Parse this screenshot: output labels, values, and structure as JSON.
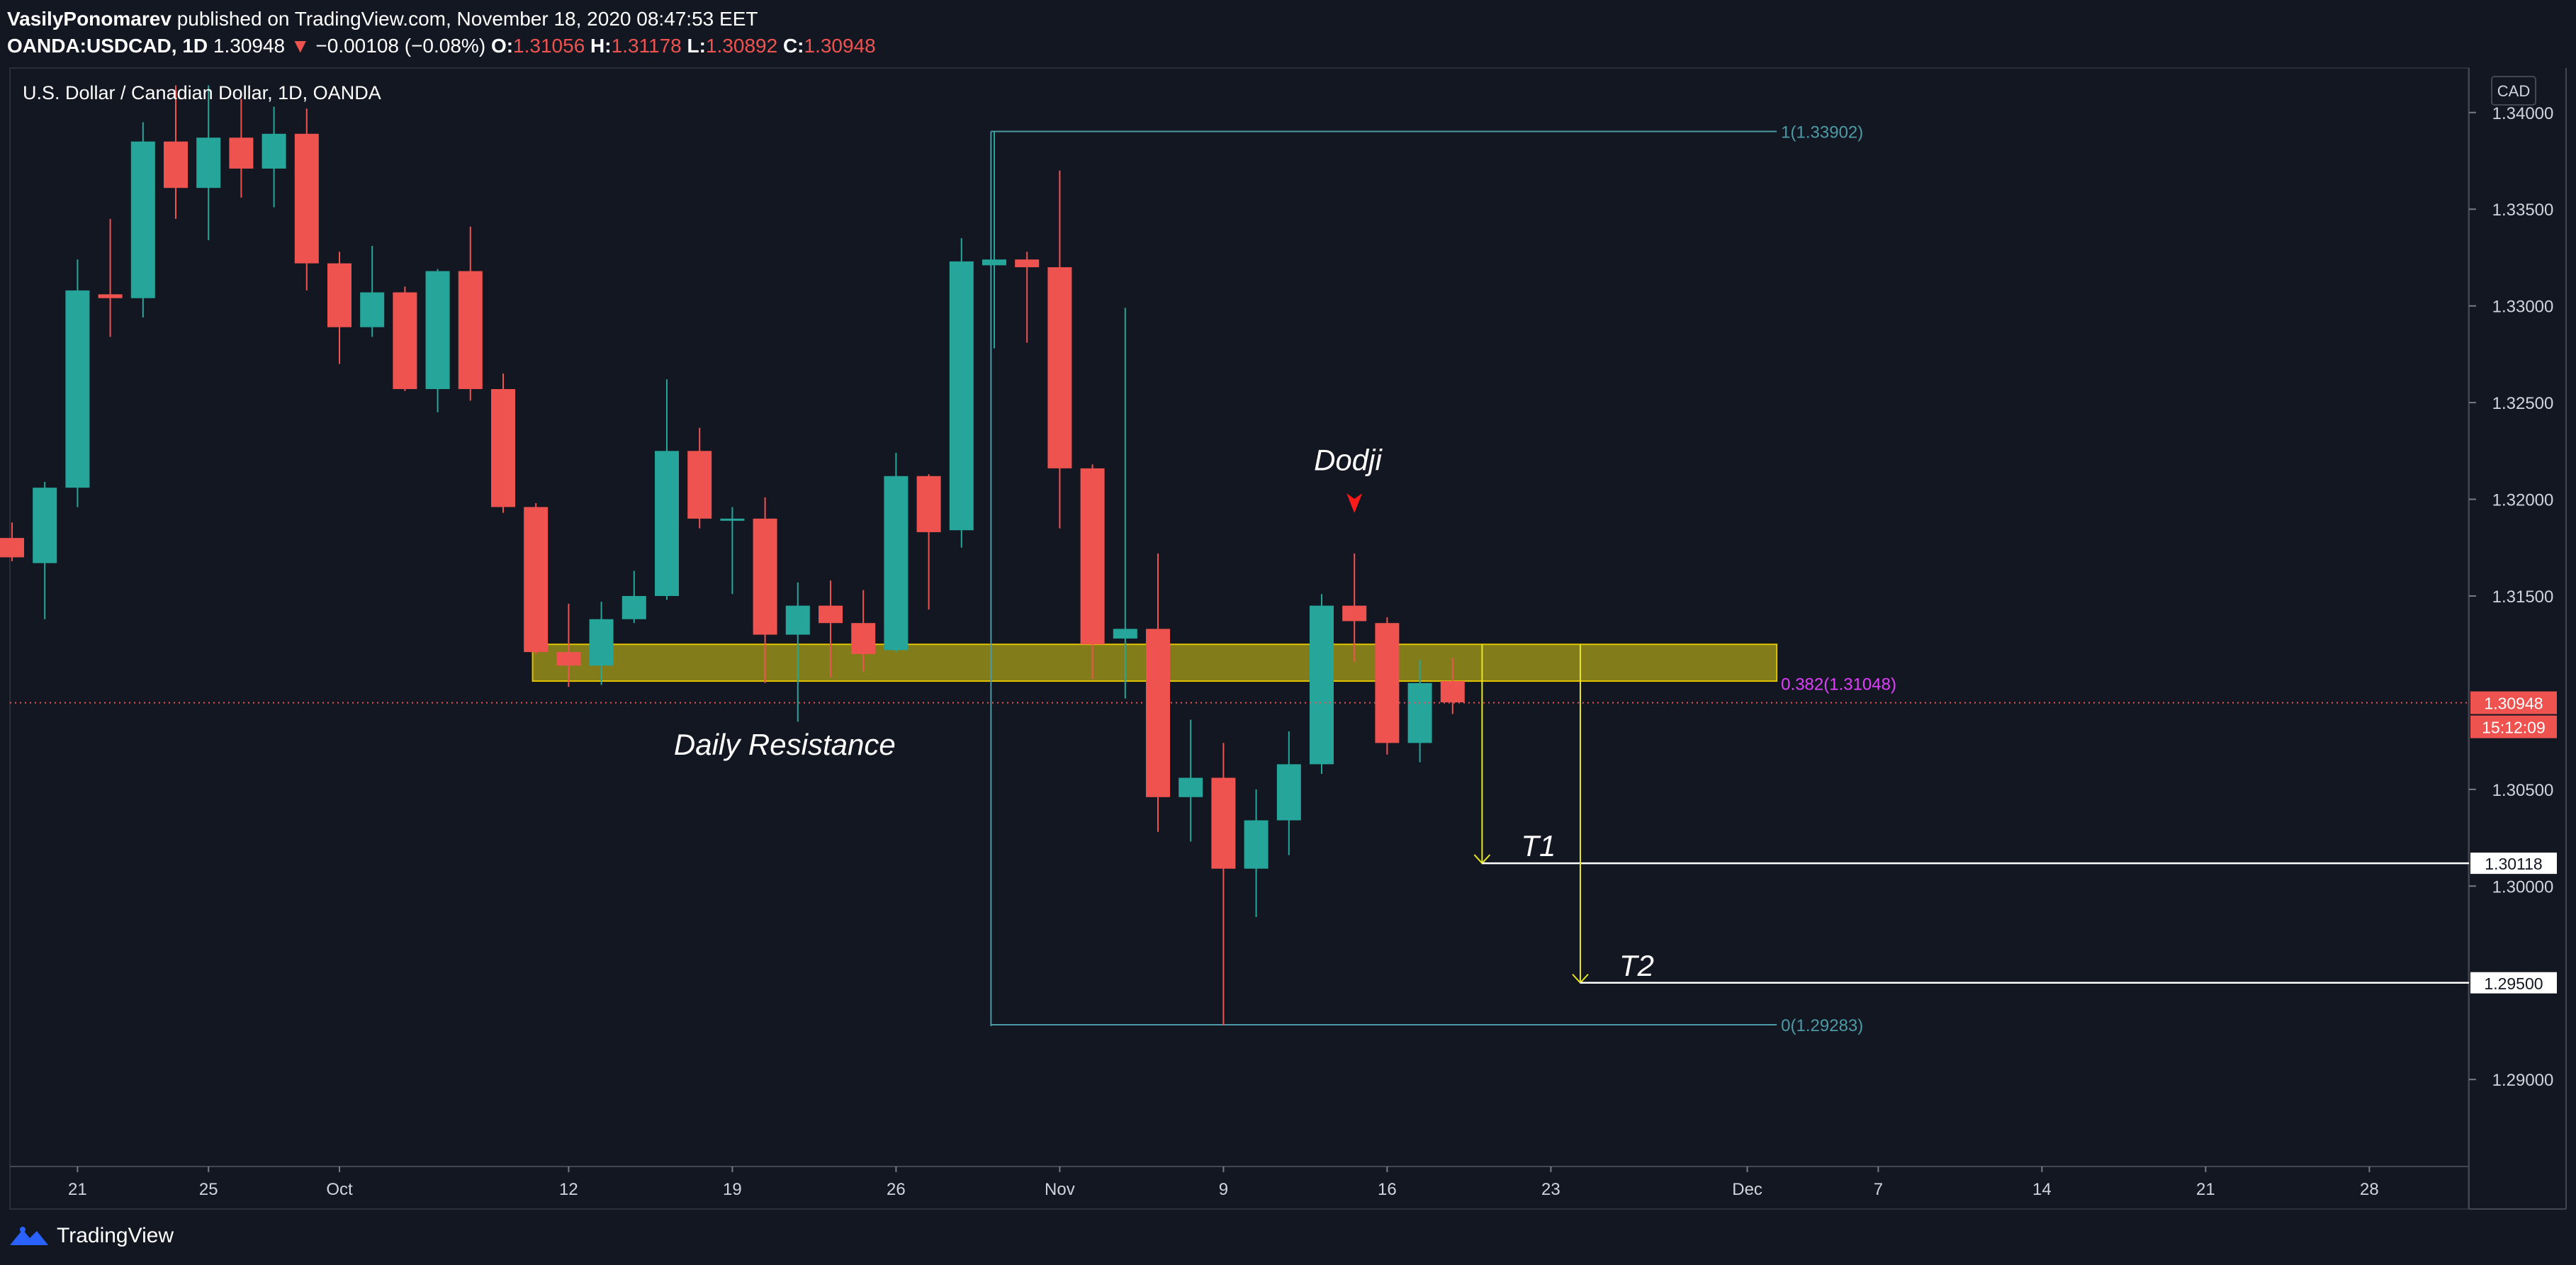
{
  "header": {
    "author": "VasilyPonomarev",
    "published_text": "published on TradingView.com, November 18, 2020 08:47:53 EET",
    "symbol": "OANDA:USDCAD, 1D",
    "last": "1.30948",
    "change": "−0.00108 (−0.08%)",
    "o_label": "O:",
    "o_val": "1.31056",
    "h_label": "H:",
    "h_val": "1.31178",
    "l_label": "L:",
    "l_val": "1.30892",
    "c_label": "C:",
    "c_val": "1.30948"
  },
  "brand": {
    "name": "TradingView"
  },
  "chart_data": {
    "type": "candlestick",
    "title": "U.S. Dollar / Canadian Dollar, 1D, OANDA",
    "currency_label": "CAD",
    "ylim": [
      1.2855,
      1.3423
    ],
    "y_ticks": [
      "1.34000",
      "1.33500",
      "1.33000",
      "1.32500",
      "1.32000",
      "1.31500",
      "1.30500",
      "1.30000",
      "1.29000"
    ],
    "x_range": [
      0,
      75
    ],
    "x_ticks": [
      {
        "i": 2,
        "label": "21"
      },
      {
        "i": 6,
        "label": "25"
      },
      {
        "i": 10,
        "label": "Oct"
      },
      {
        "i": 17,
        "label": "12"
      },
      {
        "i": 22,
        "label": "19"
      },
      {
        "i": 27,
        "label": "26"
      },
      {
        "i": 32,
        "label": "Nov"
      },
      {
        "i": 37,
        "label": "9"
      },
      {
        "i": 42,
        "label": "16"
      },
      {
        "i": 47,
        "label": "23"
      },
      {
        "i": 53,
        "label": "Dec"
      },
      {
        "i": 57,
        "label": "7"
      },
      {
        "i": 62,
        "label": "14"
      },
      {
        "i": 67,
        "label": "21"
      },
      {
        "i": 72,
        "label": "28"
      }
    ],
    "candles": [
      {
        "i": 0,
        "o": 1.318,
        "h": 1.3188,
        "l": 1.3168,
        "c": 1.317
      },
      {
        "i": 1,
        "o": 1.3167,
        "h": 1.3209,
        "l": 1.3138,
        "c": 1.3206
      },
      {
        "i": 2,
        "o": 1.3206,
        "h": 1.3324,
        "l": 1.3196,
        "c": 1.3308
      },
      {
        "i": 3,
        "o": 1.3306,
        "h": 1.3345,
        "l": 1.3284,
        "c": 1.3304
      },
      {
        "i": 4,
        "o": 1.3304,
        "h": 1.3395,
        "l": 1.3294,
        "c": 1.3385
      },
      {
        "i": 5,
        "o": 1.3385,
        "h": 1.3414,
        "l": 1.3345,
        "c": 1.3361
      },
      {
        "i": 6,
        "o": 1.3361,
        "h": 1.3414,
        "l": 1.3334,
        "c": 1.3387
      },
      {
        "i": 7,
        "o": 1.3387,
        "h": 1.3407,
        "l": 1.3356,
        "c": 1.3371
      },
      {
        "i": 8,
        "o": 1.3371,
        "h": 1.3403,
        "l": 1.3351,
        "c": 1.3389
      },
      {
        "i": 9,
        "o": 1.3389,
        "h": 1.3402,
        "l": 1.3308,
        "c": 1.3322
      },
      {
        "i": 10,
        "o": 1.3322,
        "h": 1.3328,
        "l": 1.327,
        "c": 1.3289
      },
      {
        "i": 11,
        "o": 1.3289,
        "h": 1.3331,
        "l": 1.3284,
        "c": 1.3307
      },
      {
        "i": 12,
        "o": 1.3307,
        "h": 1.331,
        "l": 1.3256,
        "c": 1.3257
      },
      {
        "i": 13,
        "o": 1.3257,
        "h": 1.3319,
        "l": 1.3245,
        "c": 1.3318
      },
      {
        "i": 14,
        "o": 1.3318,
        "h": 1.3341,
        "l": 1.3251,
        "c": 1.3257
      },
      {
        "i": 15,
        "o": 1.3257,
        "h": 1.3265,
        "l": 1.3193,
        "c": 1.3196
      },
      {
        "i": 16,
        "o": 1.3196,
        "h": 1.3198,
        "l": 1.312,
        "c": 1.3121
      },
      {
        "i": 17,
        "o": 1.3121,
        "h": 1.3146,
        "l": 1.3103,
        "c": 1.3114
      },
      {
        "i": 18,
        "o": 1.3114,
        "h": 1.3147,
        "l": 1.3104,
        "c": 1.3138
      },
      {
        "i": 19,
        "o": 1.3138,
        "h": 1.3163,
        "l": 1.3136,
        "c": 1.315
      },
      {
        "i": 20,
        "o": 1.315,
        "h": 1.3262,
        "l": 1.3148,
        "c": 1.3225
      },
      {
        "i": 21,
        "o": 1.3225,
        "h": 1.3237,
        "l": 1.3185,
        "c": 1.319
      },
      {
        "i": 22,
        "o": 1.3189,
        "h": 1.3196,
        "l": 1.3151,
        "c": 1.319
      },
      {
        "i": 23,
        "o": 1.319,
        "h": 1.3201,
        "l": 1.3105,
        "c": 1.313
      },
      {
        "i": 24,
        "o": 1.313,
        "h": 1.3157,
        "l": 1.3085,
        "c": 1.3145
      },
      {
        "i": 25,
        "o": 1.3145,
        "h": 1.3158,
        "l": 1.3108,
        "c": 1.3136
      },
      {
        "i": 26,
        "o": 1.3136,
        "h": 1.3153,
        "l": 1.3111,
        "c": 1.312
      },
      {
        "i": 27,
        "o": 1.3122,
        "h": 1.3224,
        "l": 1.3121,
        "c": 1.3212
      },
      {
        "i": 28,
        "o": 1.3212,
        "h": 1.3213,
        "l": 1.3143,
        "c": 1.3183
      },
      {
        "i": 29,
        "o": 1.3184,
        "h": 1.3335,
        "l": 1.3175,
        "c": 1.3323
      },
      {
        "i": 30,
        "o": 1.3321,
        "h": 1.339,
        "l": 1.3278,
        "c": 1.3324
      },
      {
        "i": 31,
        "o": 1.3324,
        "h": 1.3328,
        "l": 1.3281,
        "c": 1.332
      },
      {
        "i": 32,
        "o": 1.332,
        "h": 1.337,
        "l": 1.3185,
        "c": 1.3216
      },
      {
        "i": 33,
        "o": 1.3216,
        "h": 1.3218,
        "l": 1.3107,
        "c": 1.3125
      },
      {
        "i": 34,
        "o": 1.3128,
        "h": 1.3299,
        "l": 1.3097,
        "c": 1.3133
      },
      {
        "i": 35,
        "o": 1.3133,
        "h": 1.3172,
        "l": 1.3028,
        "c": 1.3046
      },
      {
        "i": 36,
        "o": 1.3046,
        "h": 1.3086,
        "l": 1.3023,
        "c": 1.3056
      },
      {
        "i": 37,
        "o": 1.3056,
        "h": 1.3074,
        "l": 1.2928,
        "c": 1.3009
      },
      {
        "i": 38,
        "o": 1.3009,
        "h": 1.305,
        "l": 1.2984,
        "c": 1.3034
      },
      {
        "i": 39,
        "o": 1.3034,
        "h": 1.308,
        "l": 1.3016,
        "c": 1.3063
      },
      {
        "i": 40,
        "o": 1.3063,
        "h": 1.3151,
        "l": 1.3058,
        "c": 1.3145
      },
      {
        "i": 41,
        "o": 1.3145,
        "h": 1.3172,
        "l": 1.3116,
        "c": 1.3137
      },
      {
        "i": 42,
        "o": 1.3136,
        "h": 1.3139,
        "l": 1.3068,
        "c": 1.3074
      },
      {
        "i": 43,
        "o": 1.3074,
        "h": 1.3117,
        "l": 1.3064,
        "c": 1.3105
      },
      {
        "i": 44,
        "o": 1.3106,
        "h": 1.3118,
        "l": 1.3089,
        "c": 1.3095
      }
    ],
    "current_price": "1.30948",
    "countdown": "15:12:09",
    "resistance_zone": {
      "x0": 15.9,
      "x1": 53.9,
      "y0": 1.3106,
      "y1": 1.3125,
      "label": "Daily Resistance"
    },
    "fib": {
      "x0": 29.9,
      "x1": 53.9,
      "levels": [
        {
          "value": 1.33902,
          "label": "1(1.33902)",
          "color": "#4d9aa5"
        },
        {
          "value": 1.31048,
          "label": "0.382(1.31048)",
          "color": "#e040fb"
        },
        {
          "value": 1.29283,
          "label": "0(1.29283)",
          "color": "#4d9aa5"
        }
      ]
    },
    "targets": [
      {
        "name": "T1",
        "value": 1.30118,
        "label": "1.30118",
        "x": 44.9
      },
      {
        "name": "T2",
        "value": 1.295,
        "label": "1.29500",
        "x": 47.9
      }
    ],
    "annotations": [
      {
        "text": "Dodji",
        "x": 40.8,
        "y": 1.3215
      },
      {
        "text": "Daily Resistance",
        "x": 23.6,
        "y": 1.3068
      }
    ]
  }
}
